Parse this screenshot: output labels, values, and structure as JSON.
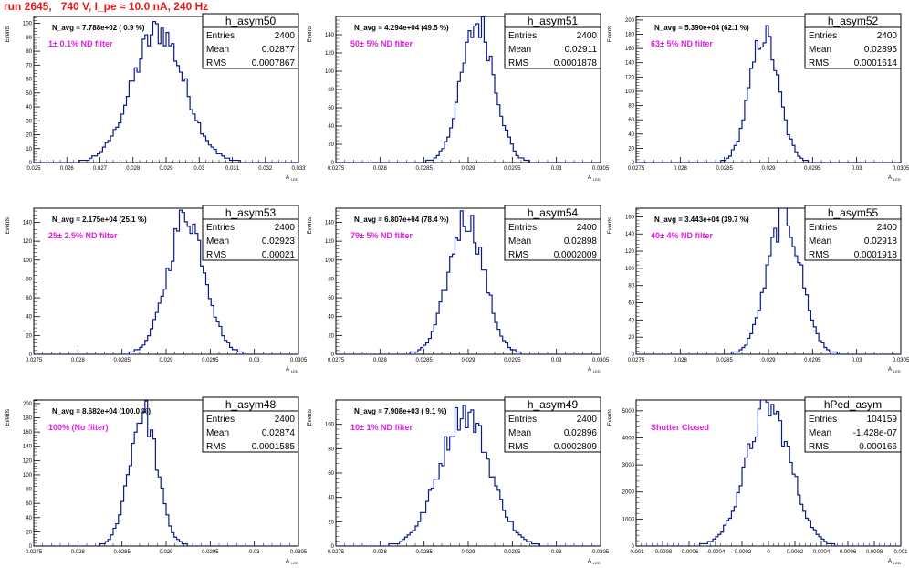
{
  "title": "run 2645,   740 V, I_pe ≈ 10.0 nA, 240 Hz",
  "y_axis_label": "Events",
  "x_axis_label": "A",
  "x_axis_sub": "LED",
  "panels": [
    {
      "name": "h_asym50",
      "navg": "N_avg = 7.788e+02 ( 0.9 %)",
      "filter": "1± 0.1% ND filter",
      "stats": [
        [
          "Entries",
          "2400"
        ],
        [
          "Mean",
          "0.02877"
        ],
        [
          "RMS",
          "0.0007867"
        ]
      ],
      "xticks": [
        "0.025",
        "0.026",
        "0.027",
        "0.028",
        "0.029",
        "0.03",
        "0.031",
        "0.032",
        "0.033"
      ],
      "yticks": [
        "0",
        "10",
        "20",
        "30",
        "40",
        "50",
        "60",
        "70",
        "80",
        "90",
        "100"
      ]
    },
    {
      "name": "h_asym51",
      "navg": "N_avg = 4.294e+04 (49.5 %)",
      "filter": "50± 5% ND filter",
      "stats": [
        [
          "Entries",
          "2400"
        ],
        [
          "Mean",
          "0.02911"
        ],
        [
          "RMS",
          "0.0001878"
        ]
      ],
      "xticks": [
        "0.0275",
        "0.028",
        "0.0285",
        "0.029",
        "0.0295",
        "0.03",
        "0.0305"
      ],
      "yticks": [
        "0",
        "20",
        "40",
        "60",
        "80",
        "100",
        "120",
        "140"
      ]
    },
    {
      "name": "h_asym52",
      "navg": "N_avg = 5.390e+04 (62.1 %)",
      "filter": "63± 5% ND filter",
      "stats": [
        [
          "Entries",
          "2400"
        ],
        [
          "Mean",
          "0.02895"
        ],
        [
          "RMS",
          "0.0001614"
        ]
      ],
      "xticks": [
        "0.0275",
        "0.028",
        "0.0285",
        "0.029",
        "0.0295",
        "0.03",
        "0.0305"
      ],
      "yticks": [
        "0",
        "20",
        "40",
        "60",
        "80",
        "100",
        "120",
        "140",
        "160",
        "180",
        "200"
      ]
    },
    {
      "name": "h_asym53",
      "navg": "N_avg = 2.175e+04 (25.1 %)",
      "filter": "25± 2.5% ND filter",
      "stats": [
        [
          "Entries",
          "2400"
        ],
        [
          "Mean",
          "0.02923"
        ],
        [
          "RMS",
          "0.00021"
        ]
      ],
      "xticks": [
        "0.0275",
        "0.028",
        "0.0285",
        "0.029",
        "0.0295",
        "0.03",
        "0.0305"
      ],
      "yticks": [
        "0",
        "20",
        "40",
        "60",
        "80",
        "100",
        "120",
        "140"
      ]
    },
    {
      "name": "h_asym54",
      "navg": "N_avg = 6.807e+04 (78.4 %)",
      "filter": "79± 5% ND filter",
      "stats": [
        [
          "Entries",
          "2400"
        ],
        [
          "Mean",
          "0.02898"
        ],
        [
          "RMS",
          "0.0002009"
        ]
      ],
      "xticks": [
        "0.0275",
        "0.028",
        "0.0285",
        "0.029",
        "0.0295",
        "0.03",
        "0.0305"
      ],
      "yticks": [
        "0",
        "20",
        "40",
        "60",
        "80",
        "100",
        "120",
        "140"
      ]
    },
    {
      "name": "h_asym55",
      "navg": "N_avg = 3.443e+04 (39.7 %)",
      "filter": "40± 4% ND filter",
      "stats": [
        [
          "Entries",
          "2400"
        ],
        [
          "Mean",
          "0.02918"
        ],
        [
          "RMS",
          "0.0001918"
        ]
      ],
      "xticks": [
        "0.0275",
        "0.028",
        "0.0285",
        "0.029",
        "0.0295",
        "0.03",
        "0.0305"
      ],
      "yticks": [
        "0",
        "20",
        "40",
        "60",
        "80",
        "100",
        "120",
        "140",
        "160"
      ]
    },
    {
      "name": "h_asym48",
      "navg": "N_avg = 8.682e+04 (100.0 %)",
      "filter": "100% (No filter)",
      "stats": [
        [
          "Entries",
          "2400"
        ],
        [
          "Mean",
          "0.02874"
        ],
        [
          "RMS",
          "0.0001585"
        ]
      ],
      "xticks": [
        "0.0275",
        "0.028",
        "0.0285",
        "0.029",
        "0.0295",
        "0.03",
        "0.0305"
      ],
      "yticks": [
        "0",
        "20",
        "40",
        "60",
        "80",
        "100",
        "120",
        "140",
        "160",
        "180",
        "200"
      ]
    },
    {
      "name": "h_asym49",
      "navg": "N_avg = 7.908e+03 ( 9.1 %)",
      "filter": "10± 1% ND filter",
      "stats": [
        [
          "Entries",
          "2400"
        ],
        [
          "Mean",
          "0.02896"
        ],
        [
          "RMS",
          "0.0002809"
        ]
      ],
      "xticks": [
        "0.0275",
        "0.028",
        "0.0285",
        "0.029",
        "0.0295",
        "0.03",
        "0.0305"
      ],
      "yticks": [
        "0",
        "20",
        "40",
        "60",
        "80",
        "100"
      ]
    },
    {
      "name": "hPed_asym",
      "navg": "",
      "filter": "Shutter Closed",
      "stats": [
        [
          "Entries",
          "104159"
        ],
        [
          "Mean",
          "-1.428e-07"
        ],
        [
          "RMS",
          "0.000166"
        ]
      ],
      "xticks": [
        "-0.001",
        "-0.0008",
        "-0.0006",
        "-0.0004",
        "-0.0002",
        "0",
        "0.0002",
        "0.0004",
        "0.0006",
        "0.0008",
        "0.001"
      ],
      "yticks": [
        "0",
        "1000",
        "2000",
        "3000",
        "4000",
        "5000"
      ]
    }
  ],
  "chart_data": [
    {
      "type": "bar",
      "name": "h_asym50",
      "xlim": [
        0.025,
        0.033
      ],
      "ylim": [
        0,
        105
      ],
      "mean": 0.02877,
      "rms": 0.0007867,
      "peak": 95,
      "entries": 2400
    },
    {
      "type": "bar",
      "name": "h_asym51",
      "xlim": [
        0.0275,
        0.0305
      ],
      "ylim": [
        0,
        160
      ],
      "mean": 0.02911,
      "rms": 0.0001878,
      "peak": 152,
      "entries": 2400
    },
    {
      "type": "bar",
      "name": "h_asym52",
      "xlim": [
        0.0275,
        0.0305
      ],
      "ylim": [
        0,
        205
      ],
      "mean": 0.02895,
      "rms": 0.0001614,
      "peak": 180,
      "entries": 2400
    },
    {
      "type": "bar",
      "name": "h_asym53",
      "xlim": [
        0.0275,
        0.0305
      ],
      "ylim": [
        0,
        155
      ],
      "mean": 0.02923,
      "rms": 0.00021,
      "peak": 148,
      "entries": 2400
    },
    {
      "type": "bar",
      "name": "h_asym54",
      "xlim": [
        0.0275,
        0.0305
      ],
      "ylim": [
        0,
        155
      ],
      "mean": 0.02898,
      "rms": 0.0002009,
      "peak": 145,
      "entries": 2400
    },
    {
      "type": "bar",
      "name": "h_asym55",
      "xlim": [
        0.0275,
        0.0305
      ],
      "ylim": [
        0,
        170
      ],
      "mean": 0.02918,
      "rms": 0.0001918,
      "peak": 160,
      "entries": 2400
    },
    {
      "type": "bar",
      "name": "h_asym48",
      "xlim": [
        0.0275,
        0.0305
      ],
      "ylim": [
        0,
        205
      ],
      "mean": 0.02874,
      "rms": 0.0001585,
      "peak": 188,
      "entries": 2400
    },
    {
      "type": "bar",
      "name": "h_asym49",
      "xlim": [
        0.0275,
        0.0305
      ],
      "ylim": [
        0,
        120
      ],
      "mean": 0.02896,
      "rms": 0.0002809,
      "peak": 110,
      "entries": 2400
    },
    {
      "type": "bar",
      "name": "hPed_asym",
      "xlim": [
        -0.001,
        0.001
      ],
      "ylim": [
        0,
        5400
      ],
      "mean": -1.428e-07,
      "rms": 0.000166,
      "peak": 5150,
      "entries": 104159
    }
  ]
}
